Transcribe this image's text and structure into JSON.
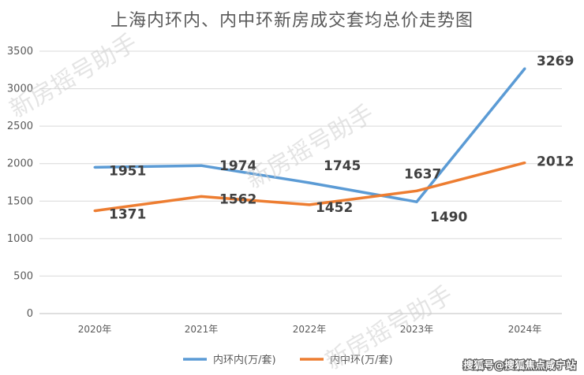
{
  "chart_data": {
    "type": "line",
    "title": "上海内环内、内中环新房成交套均总价走势图",
    "categories": [
      "2020年",
      "2021年",
      "2022年",
      "2023年",
      "2024年"
    ],
    "ylim": [
      0,
      3500
    ],
    "yticks": [
      0,
      500,
      1000,
      1500,
      2000,
      2500,
      3000,
      3500
    ],
    "grid": true,
    "legend_position": "bottom",
    "series": [
      {
        "name": "内环内(万/套)",
        "values": [
          1951,
          1974,
          1745,
          1490,
          3269
        ],
        "color": "#5b9bd5"
      },
      {
        "name": "内中环(万/套)",
        "values": [
          1371,
          1562,
          1452,
          1637,
          2012
        ],
        "color": "#ed7d31"
      }
    ]
  },
  "watermark": {
    "text": "新房摇号助手",
    "source": "搜狐号@搜狐焦点咸宁站"
  }
}
